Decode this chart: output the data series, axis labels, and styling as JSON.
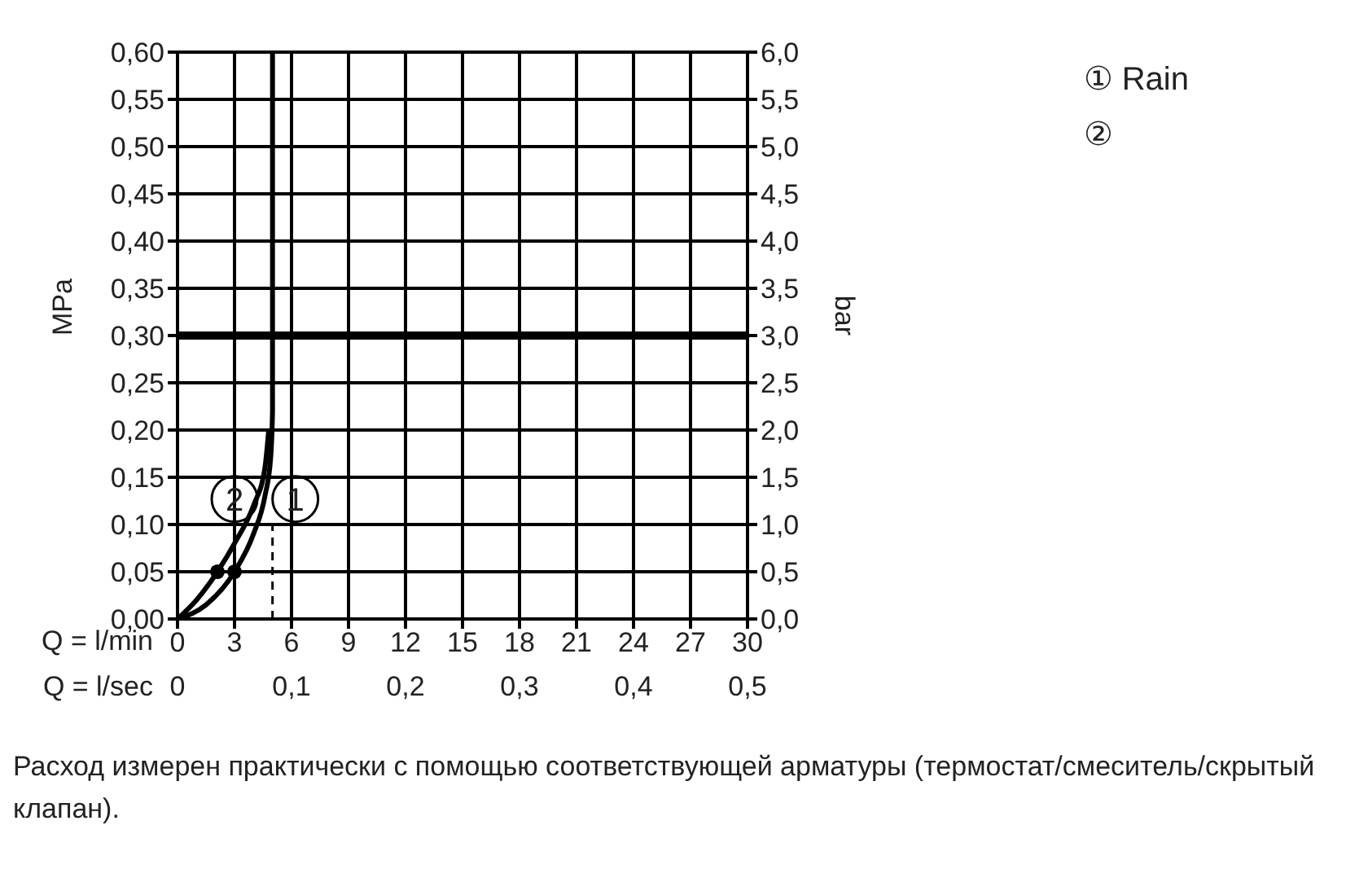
{
  "chart_data": {
    "type": "line",
    "xlabel": "Q = l/min",
    "x2label": "Q = l/sec",
    "ylabel": "MPa",
    "y2label": "bar",
    "xlim": [
      0,
      30
    ],
    "xticks": [
      0,
      3,
      6,
      9,
      12,
      15,
      18,
      21,
      24,
      27,
      30
    ],
    "x2lim": [
      0,
      0.5
    ],
    "x2ticks": [
      0,
      {
        "value": 0.1,
        "label": "0,1"
      },
      {
        "value": 0.2,
        "label": "0,2"
      },
      {
        "value": 0.3,
        "label": "0,3"
      },
      {
        "value": 0.4,
        "label": "0,4"
      },
      {
        "value": 0.5,
        "label": "0,5"
      }
    ],
    "ylim": [
      0,
      0.6
    ],
    "yticks": [
      {
        "value": 0,
        "label": "0,00"
      },
      {
        "value": 0.05,
        "label": "0,05"
      },
      {
        "value": 0.1,
        "label": "0,10"
      },
      {
        "value": 0.15,
        "label": "0,15"
      },
      {
        "value": 0.2,
        "label": "0,20"
      },
      {
        "value": 0.25,
        "label": "0,25"
      },
      {
        "value": 0.3,
        "label": "0,30"
      },
      {
        "value": 0.35,
        "label": "0,35"
      },
      {
        "value": 0.4,
        "label": "0,40"
      },
      {
        "value": 0.45,
        "label": "0,45"
      },
      {
        "value": 0.5,
        "label": "0,50"
      },
      {
        "value": 0.55,
        "label": "0,55"
      },
      {
        "value": 0.6,
        "label": "0,60"
      }
    ],
    "y2lim": [
      0,
      6
    ],
    "y2ticks": [
      {
        "value": 0,
        "label": "0,0"
      },
      {
        "value": 0.5,
        "label": "0,5"
      },
      {
        "value": 1,
        "label": "1,0"
      },
      {
        "value": 1.5,
        "label": "1,5"
      },
      {
        "value": 2,
        "label": "2,0"
      },
      {
        "value": 2.5,
        "label": "2,5"
      },
      {
        "value": 3,
        "label": "3,0"
      },
      {
        "value": 3.5,
        "label": "3,5"
      },
      {
        "value": 4,
        "label": "4,0"
      },
      {
        "value": 4.5,
        "label": "4,5"
      },
      {
        "value": 5,
        "label": "5,0"
      },
      {
        "value": 5.5,
        "label": "5,5"
      },
      {
        "value": 6,
        "label": "6,0"
      }
    ],
    "grid": true,
    "legend": "top right",
    "marker": "none",
    "series": [
      {
        "name": "① Rain",
        "color": "#000000",
        "x": [
          0,
          1.5,
          3,
          4,
          4.6,
          4.9,
          5,
          5
        ],
        "values": [
          0,
          0.015,
          0.05,
          0.09,
          0.13,
          0.17,
          0.22,
          0.6
        ]
      },
      {
        "name": "②",
        "color": "#000000",
        "x": [
          0,
          1,
          2.1,
          3,
          4,
          4.6,
          4.8
        ],
        "values": [
          0,
          0.02,
          0.05,
          0.08,
          0.12,
          0.16,
          0.2
        ]
      },
      {
        "type": "scatter",
        "marker": "circle",
        "color": "#000000",
        "x": [
          2.1,
          3
        ],
        "values": [
          0.05,
          0.05
        ]
      },
      {
        "type": "line",
        "line_style": "dashed",
        "color": "#000000",
        "x": [
          5,
          5
        ],
        "values": [
          0,
          0.1
        ]
      }
    ],
    "ref_lines": [
      {
        "axis": "y",
        "value": 0.3,
        "label": null,
        "color": "#000000"
      }
    ],
    "annotations": [
      {
        "text": "2",
        "x": 3,
        "y": 0.127
      },
      {
        "text": "1",
        "x": 6.2,
        "y": 0.127
      },
      "Расход измерен практически с помощью соответствующей арматуры (термостат/смеситель/скрытый клапан)."
    ]
  }
}
